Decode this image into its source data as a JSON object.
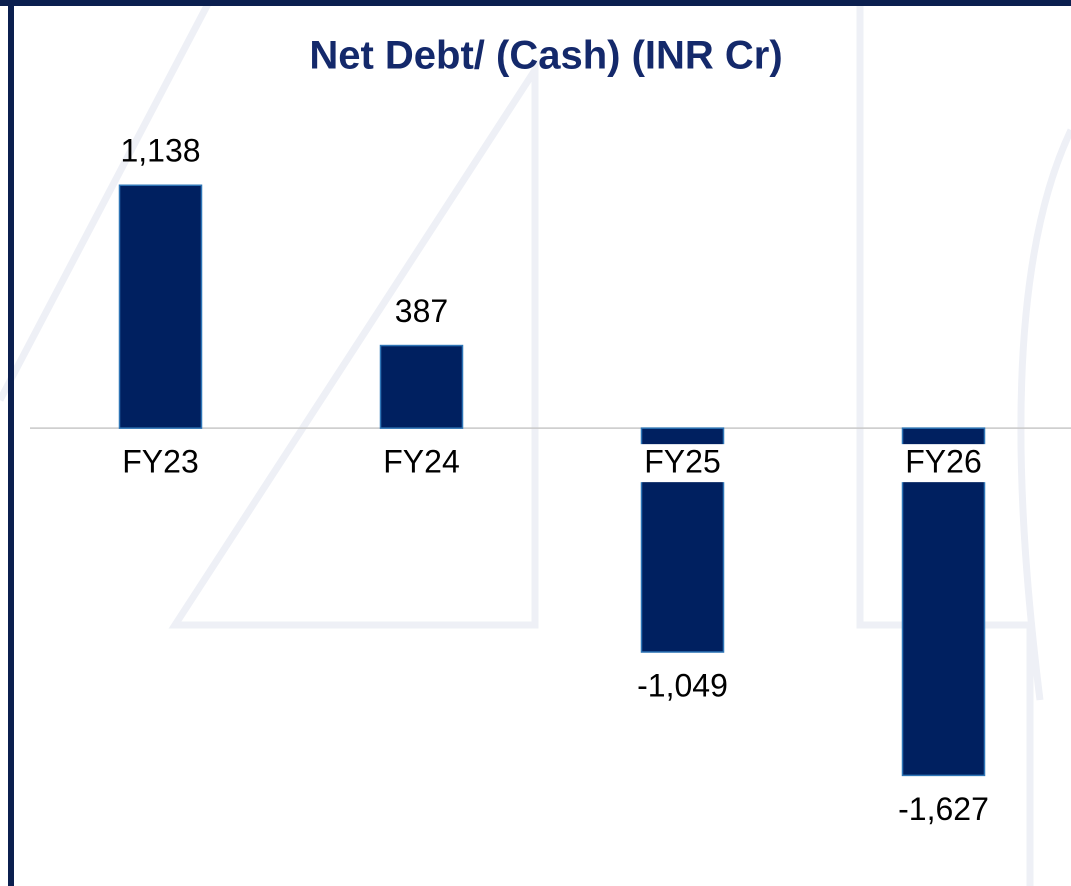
{
  "chart_data": {
    "type": "bar",
    "title": "Net Debt/ (Cash) (INR Cr)",
    "categories": [
      "FY23",
      "FY24",
      "FY25",
      "FY26"
    ],
    "values": [
      1138,
      387,
      -1049,
      -1627
    ],
    "value_labels": [
      "1,138",
      "387",
      "-1,049",
      "-1,627"
    ],
    "color": "#002060",
    "ylim": [
      -2000,
      1500
    ]
  }
}
